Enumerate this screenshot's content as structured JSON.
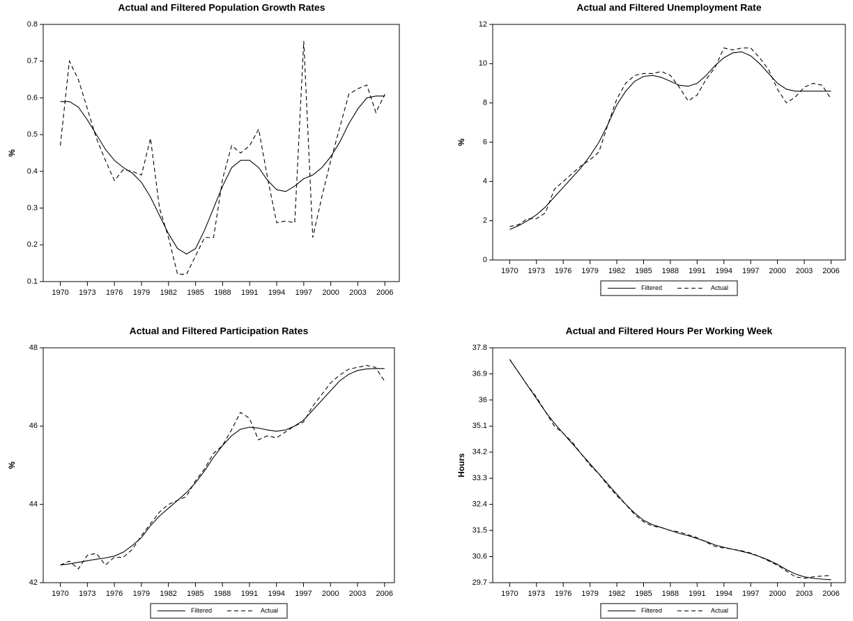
{
  "chart_data": [
    {
      "type": "line",
      "title": "Actual and Filtered Population Growth Rates",
      "ylabel": "%",
      "x": [
        1970,
        1971,
        1972,
        1973,
        1974,
        1975,
        1976,
        1977,
        1978,
        1979,
        1980,
        1981,
        1982,
        1983,
        1984,
        1985,
        1986,
        1987,
        1988,
        1989,
        1990,
        1991,
        1992,
        1993,
        1994,
        1995,
        1996,
        1997,
        1998,
        1999,
        2000,
        2001,
        2002,
        2003,
        2004,
        2005,
        2006
      ],
      "series": [
        {
          "name": "Filtered",
          "color": "#000000",
          "style": "solid",
          "values": [
            0.59,
            0.59,
            0.575,
            0.54,
            0.5,
            0.46,
            0.43,
            0.41,
            0.395,
            0.37,
            0.33,
            0.28,
            0.23,
            0.19,
            0.175,
            0.19,
            0.24,
            0.3,
            0.36,
            0.41,
            0.43,
            0.43,
            0.41,
            0.375,
            0.35,
            0.345,
            0.36,
            0.38,
            0.39,
            0.41,
            0.44,
            0.48,
            0.53,
            0.57,
            0.6,
            0.605,
            0.605
          ]
        },
        {
          "name": "Actual",
          "color": "#000000",
          "style": "dashed",
          "values": [
            0.47,
            0.7,
            0.65,
            0.57,
            0.49,
            0.43,
            0.375,
            0.405,
            0.4,
            0.39,
            0.49,
            0.3,
            0.22,
            0.12,
            0.12,
            0.17,
            0.22,
            0.22,
            0.38,
            0.47,
            0.45,
            0.47,
            0.515,
            0.38,
            0.26,
            0.265,
            0.26,
            0.755,
            0.22,
            0.33,
            0.43,
            0.52,
            0.61,
            0.625,
            0.635,
            0.56,
            0.61
          ]
        }
      ],
      "xlim": [
        1968.1,
        2007.6
      ],
      "xticks": [
        1970,
        1973,
        1976,
        1979,
        1982,
        1985,
        1988,
        1991,
        1994,
        1997,
        2000,
        2003,
        2006
      ],
      "ylim": [
        0.1,
        0.8
      ],
      "yticks": [
        0.1,
        0.2,
        0.3,
        0.4,
        0.5,
        0.6,
        0.7,
        0.8
      ],
      "legend": false
    },
    {
      "type": "line",
      "title": "Actual and Filtered Unemployment Rate",
      "ylabel": "%",
      "x": [
        1970,
        1971,
        1972,
        1973,
        1974,
        1975,
        1976,
        1977,
        1978,
        1979,
        1980,
        1981,
        1982,
        1983,
        1984,
        1985,
        1986,
        1987,
        1988,
        1989,
        1990,
        1991,
        1992,
        1993,
        1994,
        1995,
        1996,
        1997,
        1998,
        1999,
        2000,
        2001,
        2002,
        2003,
        2004,
        2005,
        2006
      ],
      "series": [
        {
          "name": "Filtered",
          "color": "#000000",
          "style": "solid",
          "values": [
            1.55,
            1.75,
            2.0,
            2.3,
            2.7,
            3.2,
            3.7,
            4.2,
            4.7,
            5.3,
            6.0,
            6.9,
            7.9,
            8.6,
            9.1,
            9.35,
            9.4,
            9.3,
            9.1,
            8.9,
            8.85,
            9.0,
            9.4,
            9.9,
            10.3,
            10.55,
            10.6,
            10.4,
            10.0,
            9.5,
            9.0,
            8.7,
            8.6,
            8.6,
            8.6,
            8.6,
            8.6
          ]
        },
        {
          "name": "Actual",
          "color": "#000000",
          "style": "dashed",
          "values": [
            1.7,
            1.8,
            2.1,
            2.1,
            2.4,
            3.6,
            4.0,
            4.4,
            4.8,
            5.1,
            5.5,
            6.9,
            8.2,
            9.0,
            9.4,
            9.5,
            9.5,
            9.6,
            9.4,
            8.8,
            8.1,
            8.4,
            9.2,
            9.8,
            10.8,
            10.7,
            10.8,
            10.8,
            10.3,
            9.7,
            8.7,
            8.0,
            8.3,
            8.8,
            9.0,
            8.9,
            8.2
          ]
        }
      ],
      "xlim": [
        1968.1,
        2007.6
      ],
      "xticks": [
        1970,
        1973,
        1976,
        1979,
        1982,
        1985,
        1988,
        1991,
        1994,
        1997,
        2000,
        2003,
        2006
      ],
      "ylim": [
        0,
        12
      ],
      "yticks": [
        0,
        2,
        4,
        6,
        8,
        10,
        12
      ],
      "legend": "bottom"
    },
    {
      "type": "line",
      "title": "Actual and Filtered Participation Rates",
      "ylabel": "%",
      "x": [
        1970,
        1971,
        1972,
        1973,
        1974,
        1975,
        1976,
        1977,
        1978,
        1979,
        1980,
        1981,
        1982,
        1983,
        1984,
        1985,
        1986,
        1987,
        1988,
        1989,
        1990,
        1991,
        1992,
        1993,
        1994,
        1995,
        1996,
        1997,
        1998,
        1999,
        2000,
        2001,
        2002,
        2003,
        2004,
        2005,
        2006
      ],
      "series": [
        {
          "name": "Filtered",
          "color": "#000000",
          "style": "solid",
          "values": [
            42.45,
            42.48,
            42.52,
            42.56,
            42.6,
            42.63,
            42.68,
            42.78,
            42.95,
            43.15,
            43.45,
            43.7,
            43.9,
            44.1,
            44.3,
            44.55,
            44.85,
            45.2,
            45.5,
            45.75,
            45.92,
            45.97,
            45.95,
            45.9,
            45.87,
            45.9,
            46.0,
            46.15,
            46.4,
            46.65,
            46.9,
            47.15,
            47.32,
            47.42,
            47.46,
            47.47,
            47.47
          ]
        },
        {
          "name": "Actual",
          "color": "#000000",
          "style": "dashed",
          "values": [
            42.45,
            42.55,
            42.35,
            42.7,
            42.75,
            42.45,
            42.65,
            42.65,
            42.85,
            43.2,
            43.5,
            43.8,
            44.0,
            44.1,
            44.2,
            44.6,
            44.9,
            45.3,
            45.5,
            45.9,
            46.35,
            46.2,
            45.65,
            45.75,
            45.7,
            45.85,
            46.0,
            46.1,
            46.5,
            46.8,
            47.1,
            47.3,
            47.45,
            47.5,
            47.55,
            47.5,
            47.15
          ]
        }
      ],
      "xlim": [
        1968.1,
        2007.1
      ],
      "xticks": [
        1970,
        1973,
        1976,
        1979,
        1982,
        1985,
        1988,
        1991,
        1994,
        1997,
        2000,
        2003,
        2006
      ],
      "ylim": [
        42,
        48
      ],
      "yticks": [
        42,
        44,
        46,
        48
      ],
      "legend": "bottom"
    },
    {
      "type": "line",
      "title": "Actual and Filtered Hours Per Working Week",
      "ylabel": "Hours",
      "x": [
        1970,
        1971,
        1972,
        1973,
        1974,
        1975,
        1976,
        1977,
        1978,
        1979,
        1980,
        1981,
        1982,
        1983,
        1984,
        1985,
        1986,
        1987,
        1988,
        1989,
        1990,
        1991,
        1992,
        1993,
        1994,
        1995,
        1996,
        1997,
        1998,
        1999,
        2000,
        2001,
        2002,
        2003,
        2004,
        2005,
        2006
      ],
      "series": [
        {
          "name": "Filtered",
          "color": "#000000",
          "style": "solid",
          "values": [
            37.4,
            36.95,
            36.5,
            36.05,
            35.6,
            35.2,
            34.85,
            34.5,
            34.15,
            33.8,
            33.45,
            33.1,
            32.75,
            32.4,
            32.1,
            31.85,
            31.7,
            31.6,
            31.5,
            31.4,
            31.32,
            31.22,
            31.12,
            31.0,
            30.92,
            30.85,
            30.78,
            30.7,
            30.6,
            30.48,
            30.33,
            30.15,
            30.0,
            29.9,
            29.85,
            29.82,
            29.8
          ]
        },
        {
          "name": "Actual",
          "color": "#000000",
          "style": "dashed",
          "values": [
            37.4,
            36.95,
            36.5,
            36.1,
            35.6,
            35.1,
            34.85,
            34.55,
            34.15,
            33.75,
            33.45,
            33.05,
            32.7,
            32.4,
            32.05,
            31.8,
            31.65,
            31.6,
            31.5,
            31.45,
            31.35,
            31.25,
            31.1,
            30.95,
            30.9,
            30.85,
            30.8,
            30.72,
            30.6,
            30.45,
            30.3,
            30.1,
            29.9,
            29.85,
            29.9,
            29.93,
            29.95
          ]
        }
      ],
      "xlim": [
        1968.1,
        2007.6
      ],
      "xticks": [
        1970,
        1973,
        1976,
        1979,
        1982,
        1985,
        1988,
        1991,
        1994,
        1997,
        2000,
        2003,
        2006
      ],
      "ylim": [
        29.7,
        37.8
      ],
      "yticks": [
        29.7,
        30.6,
        31.5,
        32.4,
        33.3,
        34.2,
        35.1,
        36.0,
        36.9,
        37.8
      ],
      "legend": "bottom"
    }
  ]
}
